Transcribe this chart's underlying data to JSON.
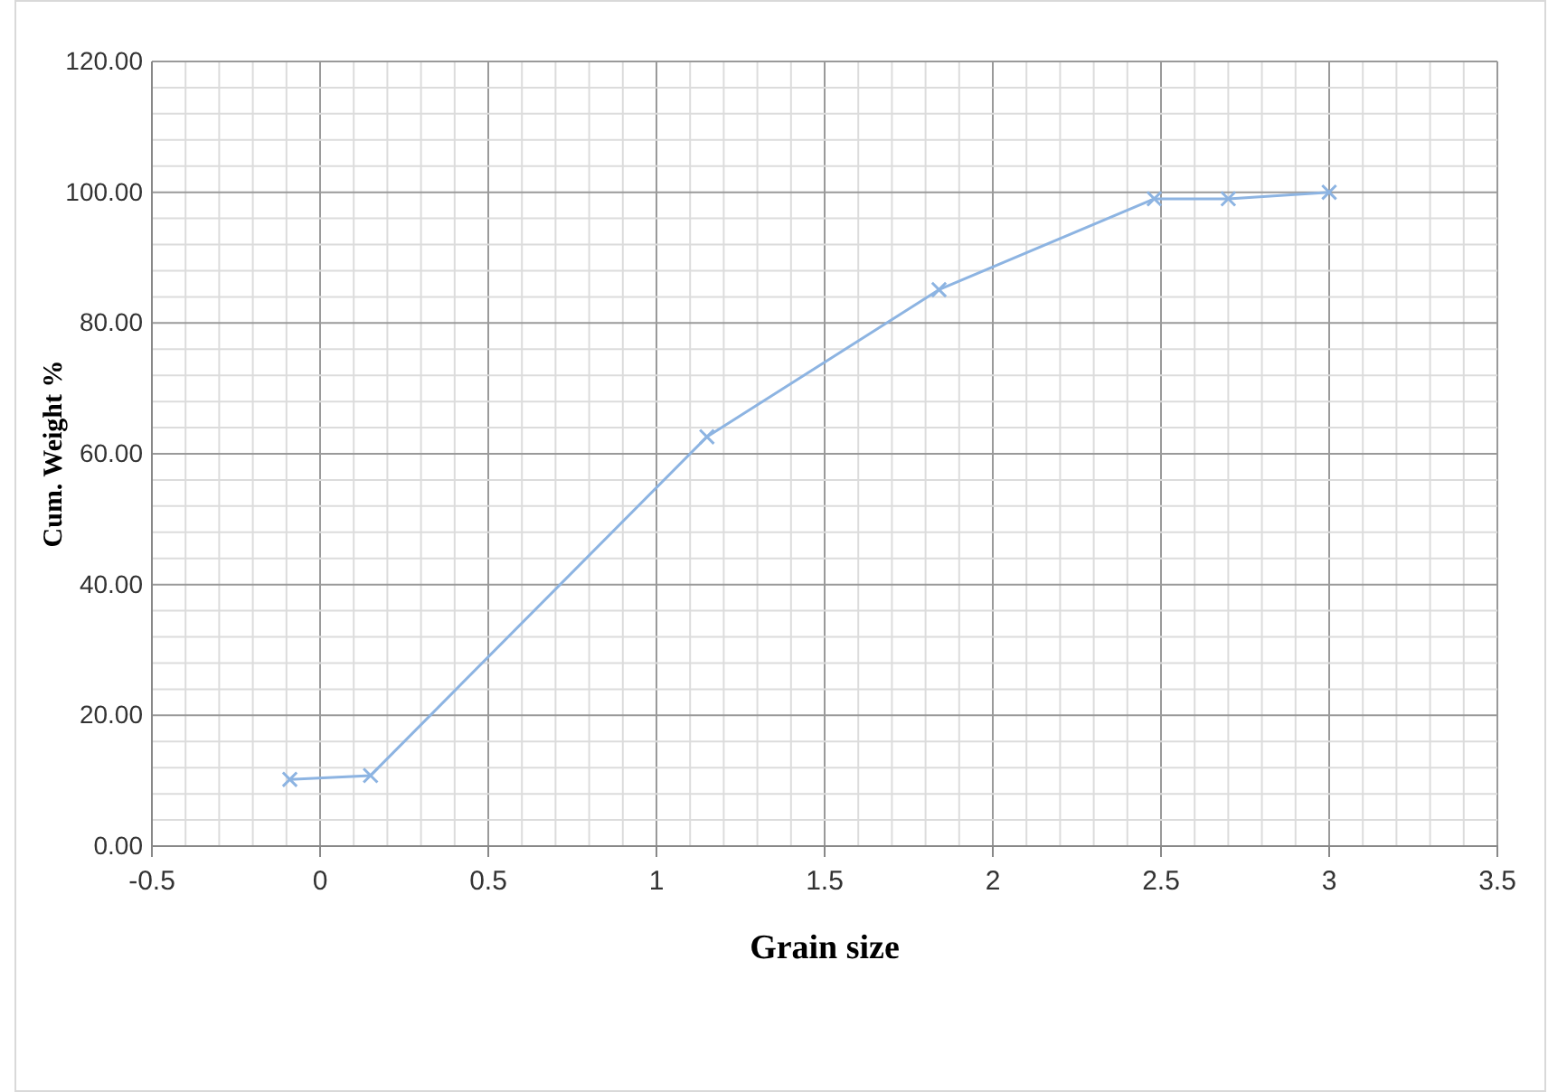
{
  "chart_data": {
    "type": "line",
    "xlabel": "Grain size",
    "ylabel": "Cum. Weight %",
    "x": [
      -0.09,
      0.15,
      1.15,
      1.84,
      2.48,
      2.7,
      3.0
    ],
    "series": [
      {
        "color": "#8db4e2",
        "values": [
          10.2,
          10.8,
          62.6,
          85.1,
          99.0,
          99.0,
          100.0
        ]
      }
    ],
    "xlim": [
      -0.5,
      3.5
    ],
    "xticks": [
      -0.5,
      0,
      0.5,
      1,
      1.5,
      2,
      2.5,
      3,
      3.5
    ],
    "ylim": [
      0,
      120
    ],
    "yticks": [
      {
        "value": 0,
        "label": "0.00"
      },
      {
        "value": 20,
        "label": "20.00"
      },
      {
        "value": 40,
        "label": "40.00"
      },
      {
        "value": 60,
        "label": "60.00"
      },
      {
        "value": 80,
        "label": "80.00"
      },
      {
        "value": 100,
        "label": "100.00"
      },
      {
        "value": 120,
        "label": "120.00"
      }
    ],
    "grid": true,
    "marker": "cross",
    "line_style": "solid"
  }
}
